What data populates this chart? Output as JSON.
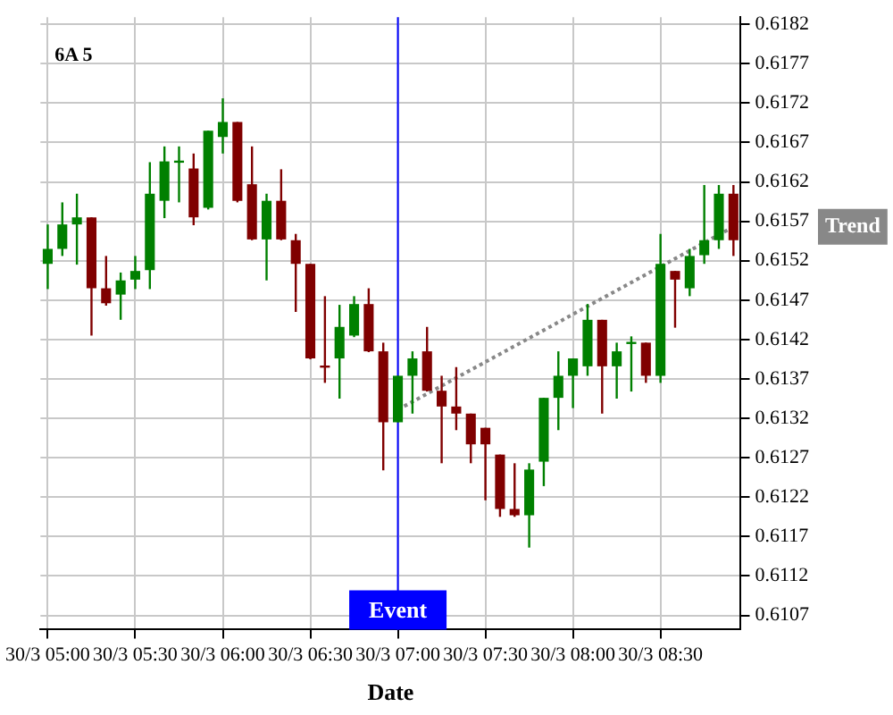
{
  "chart_data": {
    "type": "candlestick",
    "title": "6A 5",
    "xlabel": "Date",
    "categories": [
      "30/3 05:00",
      null,
      null,
      null,
      null,
      null,
      "30/3 05:30",
      null,
      null,
      null,
      null,
      null,
      "30/3 06:00",
      null,
      null,
      null,
      null,
      null,
      "30/3 06:30",
      null,
      null,
      null,
      null,
      null,
      "30/3 07:00",
      null,
      null,
      null,
      null,
      null,
      "30/3 07:30",
      null,
      null,
      null,
      null,
      null,
      "30/3 08:00",
      null,
      null,
      null,
      null,
      null,
      "30/3 08:30",
      null,
      null,
      null,
      null,
      null
    ],
    "ohlc": [
      [
        0.61516,
        0.61566,
        0.61484,
        0.61535
      ],
      [
        0.61535,
        0.61594,
        0.61526,
        0.61566
      ],
      [
        0.61566,
        0.61605,
        0.61515,
        0.61575
      ],
      [
        0.61575,
        0.61575,
        0.61425,
        0.61485
      ],
      [
        0.61485,
        0.61526,
        0.61463,
        0.61466
      ],
      [
        0.61477,
        0.61505,
        0.61445,
        0.61495
      ],
      [
        0.61496,
        0.61526,
        0.61484,
        0.61507
      ],
      [
        0.61508,
        0.61645,
        0.61484,
        0.61605
      ],
      [
        0.61596,
        0.61665,
        0.61574,
        0.61646
      ],
      [
        0.61647,
        0.61665,
        0.61594,
        0.61647
      ],
      [
        0.61637,
        0.61656,
        0.61565,
        0.61575
      ],
      [
        0.61587,
        0.61685,
        0.61585,
        0.61685
      ],
      [
        0.61677,
        0.61726,
        0.61656,
        0.61696
      ],
      [
        0.61696,
        0.61696,
        0.61594,
        0.61596
      ],
      [
        0.61617,
        0.61665,
        0.61546,
        0.61547
      ],
      [
        0.61547,
        0.61605,
        0.61495,
        0.61596
      ],
      [
        0.61596,
        0.61636,
        0.61546,
        0.61547
      ],
      [
        0.61546,
        0.61554,
        0.61455,
        0.61516
      ],
      [
        0.61516,
        0.61516,
        0.61395,
        0.61396
      ],
      [
        0.61387,
        0.61475,
        0.61365,
        0.61387
      ],
      [
        0.61396,
        0.61464,
        0.61345,
        0.61436
      ],
      [
        0.61425,
        0.61475,
        0.61423,
        0.61465
      ],
      [
        0.61465,
        0.61485,
        0.61404,
        0.61405
      ],
      [
        0.61405,
        0.61416,
        0.61254,
        0.61315
      ],
      [
        0.61315,
        0.61374,
        0.61315,
        0.61374
      ],
      [
        0.61374,
        0.61405,
        0.61326,
        0.61396
      ],
      [
        0.61405,
        0.61436,
        0.61354,
        0.61355
      ],
      [
        0.61355,
        0.61374,
        0.61263,
        0.61335
      ],
      [
        0.61335,
        0.61385,
        0.61305,
        0.61326
      ],
      [
        0.61326,
        0.61326,
        0.61263,
        0.61287
      ],
      [
        0.61308,
        0.61308,
        0.61216,
        0.61287
      ],
      [
        0.61274,
        0.61274,
        0.61195,
        0.61205
      ],
      [
        0.61205,
        0.61263,
        0.61195,
        0.61197
      ],
      [
        0.61197,
        0.61263,
        0.61156,
        0.61255
      ],
      [
        0.61265,
        0.61346,
        0.61234,
        0.61346
      ],
      [
        0.61346,
        0.61405,
        0.61305,
        0.61374
      ],
      [
        0.61374,
        0.61396,
        0.61333,
        0.61396
      ],
      [
        0.61386,
        0.61465,
        0.61374,
        0.61445
      ],
      [
        0.61445,
        0.61445,
        0.61326,
        0.61386
      ],
      [
        0.61386,
        0.61416,
        0.61345,
        0.61405
      ],
      [
        0.61417,
        0.61424,
        0.61354,
        0.61417
      ],
      [
        0.61416,
        0.61416,
        0.61365,
        0.61374
      ],
      [
        0.61374,
        0.61554,
        0.61365,
        0.61516
      ],
      [
        0.61507,
        0.61507,
        0.61435,
        0.61496
      ],
      [
        0.61485,
        0.61535,
        0.61475,
        0.61526
      ],
      [
        0.61527,
        0.61616,
        0.61516,
        0.61546
      ],
      [
        0.61546,
        0.61616,
        0.61535,
        0.61605
      ],
      [
        0.61605,
        0.61616,
        0.61526,
        0.61546
      ]
    ],
    "colors": [
      "#008000",
      "#008000",
      "#008000",
      "#800000",
      "#800000",
      "#008000",
      "#008000",
      "#008000",
      "#008000",
      "#008000",
      "#800000",
      "#008000",
      "#008000",
      "#800000",
      "#800000",
      "#008000",
      "#800000",
      "#800000",
      "#800000",
      "#800000",
      "#008000",
      "#008000",
      "#800000",
      "#800000",
      "#008000",
      "#008000",
      "#800000",
      "#800000",
      "#800000",
      "#800000",
      "#800000",
      "#800000",
      "#800000",
      "#008000",
      "#008000",
      "#008000",
      "#008000",
      "#008000",
      "#800000",
      "#008000",
      "#008000",
      "#800000",
      "#008000",
      "#800000",
      "#008000",
      "#008000",
      "#008000",
      "#800000"
    ],
    "series": [
      {
        "name": "Trend",
        "type": "line",
        "color": "#888888",
        "line_style": "dotted",
        "values": [
          null,
          null,
          null,
          null,
          null,
          null,
          null,
          null,
          null,
          null,
          null,
          null,
          null,
          null,
          null,
          null,
          null,
          null,
          null,
          null,
          null,
          null,
          null,
          null,
          0.61331,
          null,
          null,
          null,
          null,
          null,
          null,
          null,
          null,
          null,
          null,
          null,
          null,
          null,
          null,
          null,
          null,
          null,
          null,
          null,
          null,
          null,
          null,
          0.61563
        ]
      }
    ],
    "ref_lines": [
      {
        "axis": "x",
        "value": "30/3 07:00",
        "label": "Event",
        "color": "#0000ff"
      }
    ],
    "ylim": [
      0.61052,
      0.61829
    ],
    "yticks": [
      0.6107,
      0.6112,
      0.6117,
      0.6122,
      0.6127,
      0.6132,
      0.6137,
      0.6142,
      0.6147,
      0.6152,
      0.6157,
      0.6162,
      0.6167,
      0.6172,
      0.6177,
      0.6182
    ],
    "grid": true,
    "legend": false
  }
}
